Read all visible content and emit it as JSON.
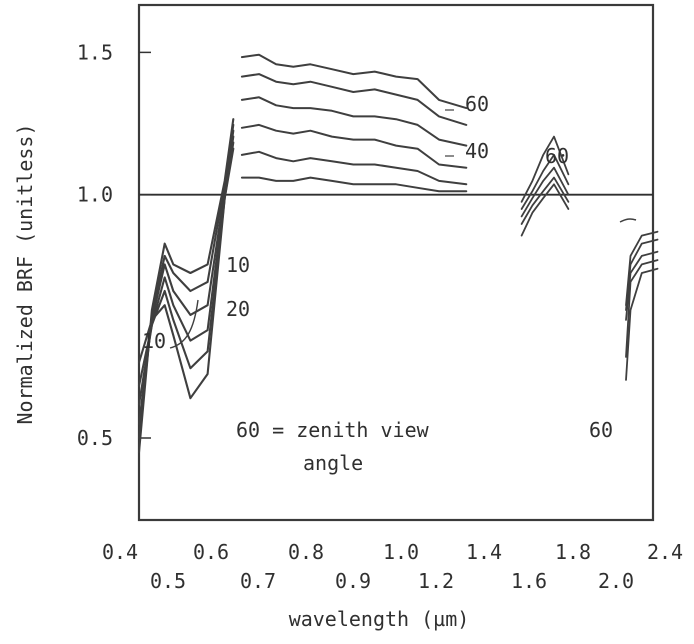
{
  "chart_data": {
    "type": "line",
    "title": "",
    "xlabel": "wavelength (µm)",
    "ylabel": "Normalized BRF (unitless)",
    "scale": "log-like vertical axis with ticks at 0.5, 1.0, 1.5",
    "ylim": [
      0.42,
      1.75
    ],
    "y_ticks": [
      0.5,
      1.0,
      1.5
    ],
    "x_ticks_top_row": [
      "0.4",
      "0.6",
      "0.8",
      "1.0",
      "1.4",
      "1.8",
      "2.4"
    ],
    "x_ticks_bottom_row": [
      "0.5",
      "0.7",
      "0.9",
      "1.2",
      "1.6",
      "2.0"
    ],
    "reference_line": 1.0,
    "annotations": {
      "label_60_upper": "60",
      "label_40": "40",
      "label_10_middle": "10",
      "label_20": "20",
      "label_10_left": "10",
      "label_60_swir": "60",
      "label_60_far_swir": "60",
      "zenith_note_line1": "60 = zenith view",
      "zenith_note_line2": "angle"
    },
    "visible_band": {
      "x": [
        0.5,
        0.53,
        0.56,
        0.58,
        0.62,
        0.66,
        0.7,
        0.72
      ],
      "series": [
        {
          "values": [
            0.48,
            0.72,
            0.87,
            0.82,
            0.8,
            0.82,
            1.04,
            1.24
          ]
        },
        {
          "values": [
            0.5,
            0.71,
            0.84,
            0.8,
            0.76,
            0.78,
            1.03,
            1.22
          ]
        },
        {
          "values": [
            0.52,
            0.7,
            0.82,
            0.76,
            0.71,
            0.73,
            1.01,
            1.2
          ]
        },
        {
          "values": [
            0.55,
            0.69,
            0.79,
            0.73,
            0.66,
            0.68,
            1.0,
            1.18
          ]
        },
        {
          "values": [
            0.58,
            0.69,
            0.76,
            0.7,
            0.61,
            0.64,
            0.99,
            1.16
          ]
        },
        {
          "values": [
            0.62,
            0.7,
            0.73,
            0.67,
            0.56,
            0.6,
            0.99,
            1.14
          ]
        }
      ]
    },
    "nir_band": {
      "x": [
        0.74,
        0.78,
        0.82,
        0.86,
        0.9,
        0.95,
        1.0,
        1.05,
        1.1,
        1.15,
        1.2,
        1.25
      ],
      "series": [
        {
          "name": "60",
          "values": [
            1.48,
            1.49,
            1.45,
            1.44,
            1.45,
            1.43,
            1.41,
            1.42,
            1.4,
            1.39,
            1.31,
            1.28
          ]
        },
        {
          "values": [
            1.4,
            1.41,
            1.38,
            1.37,
            1.38,
            1.36,
            1.34,
            1.35,
            1.33,
            1.31,
            1.25,
            1.22
          ]
        },
        {
          "name": "40",
          "values": [
            1.31,
            1.32,
            1.29,
            1.28,
            1.28,
            1.27,
            1.25,
            1.25,
            1.24,
            1.22,
            1.17,
            1.15
          ]
        },
        {
          "values": [
            1.21,
            1.22,
            1.2,
            1.19,
            1.2,
            1.18,
            1.17,
            1.17,
            1.15,
            1.14,
            1.09,
            1.08
          ]
        },
        {
          "values": [
            1.12,
            1.13,
            1.11,
            1.1,
            1.11,
            1.1,
            1.09,
            1.09,
            1.08,
            1.07,
            1.04,
            1.03
          ]
        },
        {
          "values": [
            1.05,
            1.05,
            1.04,
            1.04,
            1.05,
            1.04,
            1.03,
            1.03,
            1.03,
            1.02,
            1.01,
            1.01
          ]
        }
      ]
    },
    "swir_band_1": {
      "x": [
        1.52,
        1.58,
        1.64,
        1.7,
        1.78
      ],
      "series": [
        {
          "name": "60",
          "values": [
            0.98,
            1.04,
            1.12,
            1.18,
            1.06
          ]
        },
        {
          "values": [
            0.96,
            1.01,
            1.07,
            1.12,
            1.03
          ]
        },
        {
          "values": [
            0.94,
            0.99,
            1.04,
            1.08,
            1.0
          ]
        },
        {
          "values": [
            0.92,
            0.97,
            1.01,
            1.05,
            0.98
          ]
        },
        {
          "values": [
            0.89,
            0.95,
            0.99,
            1.03,
            0.96
          ]
        }
      ]
    },
    "swir_band_2": {
      "x": [
        2.08,
        2.1,
        2.15,
        2.22
      ],
      "series": [
        {
          "values": [
            0.73,
            0.84,
            0.89,
            0.9
          ]
        },
        {
          "values": [
            0.72,
            0.82,
            0.87,
            0.88
          ]
        },
        {
          "values": [
            0.7,
            0.8,
            0.84,
            0.85
          ]
        },
        {
          "values": [
            0.63,
            0.78,
            0.82,
            0.83
          ]
        },
        {
          "name": "60",
          "values": [
            0.59,
            0.72,
            0.8,
            0.81
          ]
        }
      ]
    }
  }
}
